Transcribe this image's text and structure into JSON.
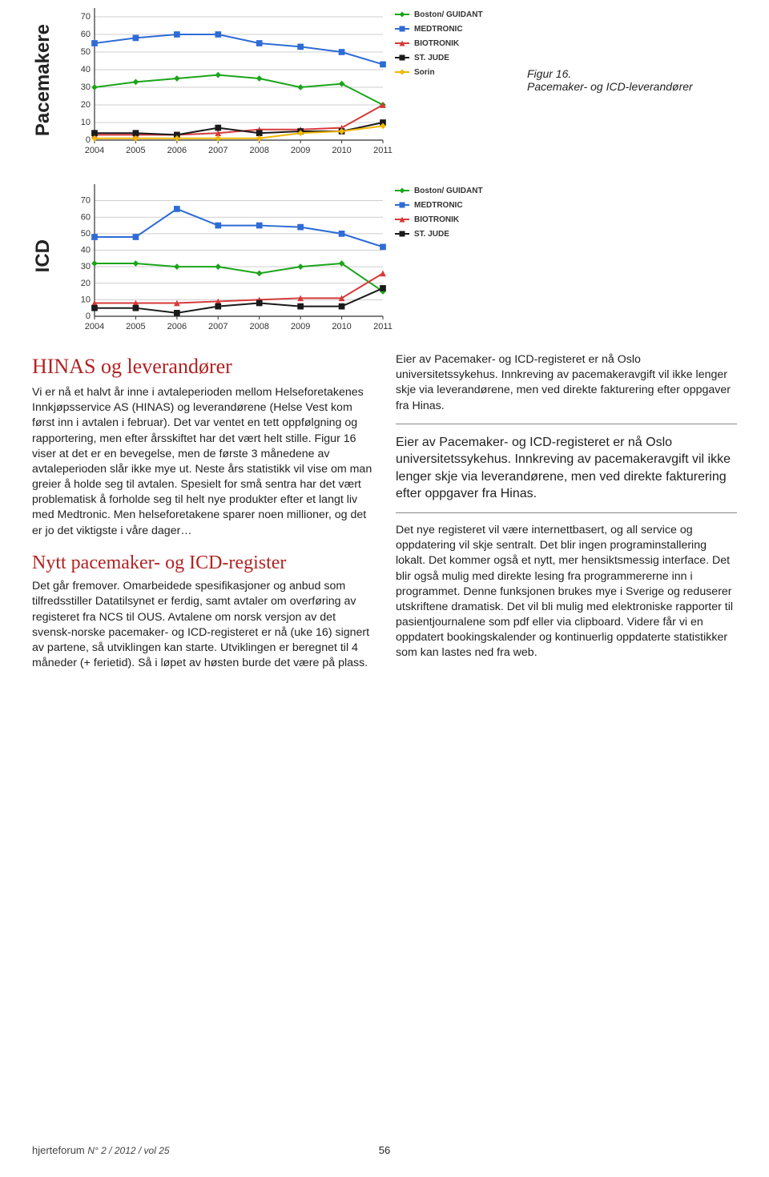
{
  "chart_common": {
    "years": [
      2004,
      2005,
      2006,
      2007,
      2008,
      2009,
      2010,
      2011
    ],
    "axis_fontsize": 11,
    "axis_color": "#333333",
    "grid_color": "#bfbfbf",
    "background": "#ffffff",
    "line_width": 2,
    "marker_size": 5
  },
  "chart1": {
    "label": "Pacemakere",
    "type": "line",
    "ylim": [
      0,
      75
    ],
    "yticks": [
      0,
      10,
      20,
      30,
      40,
      50,
      60,
      70
    ],
    "series": [
      {
        "name": "Boston/ GUIDANT",
        "color": "#1aa51a",
        "marker": "diamond",
        "values": [
          30,
          33,
          35,
          37,
          35,
          30,
          32,
          20
        ]
      },
      {
        "name": "MEDTRONIC",
        "color": "#2e6bd6",
        "marker": "square",
        "values": [
          55,
          58,
          60,
          60,
          55,
          53,
          50,
          43
        ]
      },
      {
        "name": "BIOTRONIK",
        "color": "#d63a3a",
        "marker": "triangle",
        "values": [
          3,
          3,
          3,
          4,
          6,
          6,
          7,
          20
        ]
      },
      {
        "name": "ST. JUDE",
        "color": "#1a1a1a",
        "marker": "square",
        "values": [
          4,
          4,
          3,
          7,
          4,
          5,
          5,
          10
        ]
      },
      {
        "name": "Sorin",
        "color": "#f2b705",
        "marker": "diamond",
        "values": [
          1,
          1,
          1,
          1,
          1,
          4,
          5,
          8
        ]
      }
    ],
    "legend_fontsize": 10,
    "legend_bg": "#ffffff"
  },
  "caption": {
    "title": "Figur 16.",
    "sub": "Pacemaker- og ICD-leverandører"
  },
  "chart2": {
    "label": "ICD",
    "type": "line",
    "ylim": [
      0,
      80
    ],
    "yticks": [
      0,
      10,
      20,
      30,
      40,
      50,
      60,
      70
    ],
    "series": [
      {
        "name": "Boston/ GUIDANT",
        "color": "#1aa51a",
        "marker": "diamond",
        "values": [
          32,
          32,
          30,
          30,
          26,
          30,
          32,
          15
        ]
      },
      {
        "name": "MEDTRONIC",
        "color": "#2e6bd6",
        "marker": "square",
        "values": [
          48,
          48,
          65,
          55,
          55,
          54,
          50,
          42
        ]
      },
      {
        "name": "BIOTRONIK",
        "color": "#d63a3a",
        "marker": "triangle",
        "values": [
          8,
          8,
          8,
          9,
          10,
          11,
          11,
          26
        ]
      },
      {
        "name": "ST. JUDE",
        "color": "#1a1a1a",
        "marker": "square",
        "values": [
          5,
          5,
          2,
          6,
          8,
          6,
          6,
          17
        ]
      }
    ],
    "legend_fontsize": 10,
    "legend_bg": "#ffffff"
  },
  "article": {
    "h1": "HINAS og leverandører",
    "p1": "Vi er nå et halvt år inne i avtaleperioden mellom Helseforetakenes Innkjøpsservice AS (HINAS) og leverandørene (Helse Vest kom først inn i avtalen i februar). Det var ventet en tett oppfølgning og rapportering, men efter årsskiftet har det vært helt stille. Figur 16 viser at det er en bevegelse, men de første 3 månedene av avtaleperioden slår ikke mye ut. Neste års statistikk vil vise om man greier å holde seg til avtalen. Spesielt for små sentra har det vært problematisk å forholde seg til helt nye produkter efter et langt liv med Medtronic. Men helseforetakene sparer noen millioner, og det er jo det viktigste i våre dager…",
    "h2": "Nytt pacemaker- og ICD-register",
    "p2": "Det går fremover. Omarbeidede spesifikasjoner og anbud som tilfredsstiller Datatilsynet er ferdig, samt avtaler om overføring av registeret fra NCS til OUS. Avtalene om norsk versjon av det svensk-norske pacemaker- og ICD-registeret er nå (uke 16) signert av partene, så utviklingen kan starte. Utviklingen er beregnet til 4 måneder (+ ferietid). Så i løpet av høsten burde det være på plass. Eier av Pacemaker- og ICD-registeret er nå Oslo universitetssykehus. Innkreving av pacemakeravgift vil ikke lenger skje via leverandørene, men ved direkte fakturering efter oppgaver fra Hinas.",
    "pull": "Eier av Pacemaker- og ICD-registeret er nå Oslo universitetssykehus. Innkreving av pacemakeravgift vil ikke lenger skje via leverandørene, men ved direkte fakturering efter oppgaver fra Hinas.",
    "p3": "Det nye registeret vil være internettbasert, og all service og oppdatering vil skje sentralt. Det blir ingen programinstallering lokalt. Det kommer også et nytt, mer hensiktsmessig interface. Det blir også mulig med direkte lesing fra programmererne inn i programmet. Denne funksjonen brukes mye i Sverige og reduserer utskriftene dramatisk. Det vil bli mulig med elektroniske rapporter til pasientjournalene som pdf eller via clipboard. Videre får vi en oppdatert bookingskalender og kontinuerlig oppdaterte statistikker som kan lastes ned fra web."
  },
  "footer": {
    "journal": "hjerteforum",
    "issue": "N° 2 / 2012 / vol 25",
    "page": "56"
  }
}
